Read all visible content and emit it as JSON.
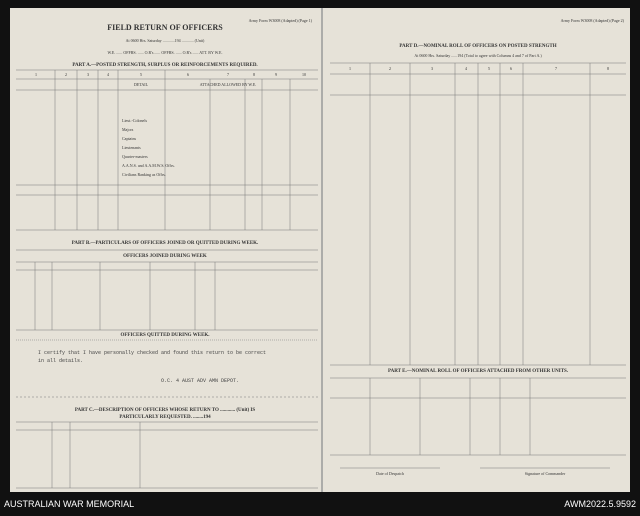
{
  "left_page": {
    "title": "FIELD RETURN OF OFFICERS",
    "form_ref": "Army Form W3008 (Adapted) (Page 1)",
    "date_line": "At 0600 Hrs. Saturday ............194 ............ (Unit)",
    "we_line": "W.E. ...... OFFRS. ...... O.R's ...... OFFRS. ...... O.R's ...... ATT. BY W.E.",
    "part_a": "PART A.—POSTED STRENGTH, SURPLUS OR REINFORCEMENTS REQUIRED.",
    "column_numbers": [
      "1",
      "2",
      "3",
      "4",
      "5",
      "6",
      "7",
      "8",
      "9",
      "10"
    ],
    "detail_header": "DETAIL",
    "attached_header": "ATTACHED ALLOWED BY W.E.",
    "ranks": [
      "Lieut.-Colonels",
      "Majors",
      "Captains",
      "Lieutenants",
      "Quarter-masters",
      "A.A.N.S. and A.A.M.W.S. Offrs.",
      "Civilians Ranking as Offrs."
    ],
    "part_b": "PART B.—PARTICULARS OF OFFICERS JOINED OR QUITTED DURING WEEK.",
    "joined": "OFFICERS JOINED DURING WEEK",
    "quitted": "OFFICERS QUITTED DURING WEEK.",
    "certify": [
      "I certify that I have personally checked and found this return to be correct",
      "in all details."
    ],
    "signature_title": "O.C. 4 AUST ADV AMN DEPOT.",
    "part_c": "PART C.—DESCRIPTION OF OFFICERS WHOSE RETURN TO ............ (Unit) IS",
    "part_c_2": "PARTICULARLY REQUESTED. ........194"
  },
  "right_page": {
    "form_ref": "Army Form W3008 (Adapted) (Page 2)",
    "part_d": "PART D.—NOMINAL ROLL OF OFFICERS ON POSTED STRENGTH",
    "date_line": "At 0600 Hrs. Saturday ......194 (Total to agree with Columns 4 and 7 of Part A.)",
    "column_numbers": [
      "1",
      "2",
      "3",
      "4",
      "5",
      "6",
      "7",
      "8"
    ],
    "part_e": "PART E.—NOMINAL ROLL OF OFFICERS ATTACHED FROM OTHER UNITS.",
    "date_of_despatch": "Date of Despatch",
    "signature": "Signature of Commander"
  },
  "footer": {
    "left": "AUSTRALIAN WAR MEMORIAL",
    "right": "AWM2022.5.9592"
  }
}
